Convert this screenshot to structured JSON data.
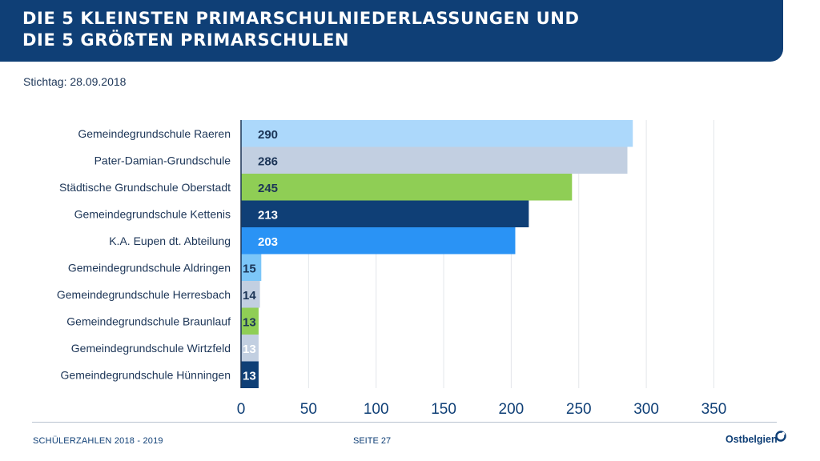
{
  "header": {
    "title_line1": "DIE 5 KLEINSTEN PRIMARSCHULNIEDERLASSUNGEN UND",
    "title_line2": "DIE 5 GRÖßTEN PRIMARSCHULEN",
    "color": "#0f3f76"
  },
  "subtitle": "Stichtag: 28.09.2018",
  "chart_data": {
    "type": "bar",
    "orientation": "horizontal",
    "categories": [
      "Gemeindegrundschule Raeren",
      "Pater-Damian-Grundschule",
      "Städtische Grundschule Oberstadt",
      "Gemeindegrundschule Kettenis",
      "K.A. Eupen dt. Abteilung",
      "Gemeindegrundschule Aldringen",
      "Gemeindegrundschule Herresbach",
      "Gemeindegrundschule Braunlauf",
      "Gemeindegrundschule Wirtzfeld",
      "Gemeindegrundschule Hünningen"
    ],
    "values": [
      290,
      286,
      245,
      213,
      203,
      15,
      14,
      13,
      13,
      13
    ],
    "bar_colors": [
      "#acd8fb",
      "#c2cfe1",
      "#8fce55",
      "#0f3f76",
      "#2a93f5",
      "#7cc6f8",
      "#c2cfe1",
      "#8fce55",
      "#c2cfe1",
      "#0f3f76"
    ],
    "label_colors": [
      "#1c3557",
      "#1c3557",
      "#1c3557",
      "#ffffff",
      "#ffffff",
      "#1c3557",
      "#1c3557",
      "#1c3557",
      "#ffffff",
      "#ffffff"
    ],
    "xlim": [
      0,
      350
    ],
    "xticks": [
      0,
      50,
      100,
      150,
      200,
      250,
      300,
      350
    ],
    "grid": "vertical"
  },
  "footer": {
    "left": "SCHÜLERZAHLEN 2018 - 2019",
    "page": "SEITE 27",
    "logo": "Ostbelgien"
  }
}
